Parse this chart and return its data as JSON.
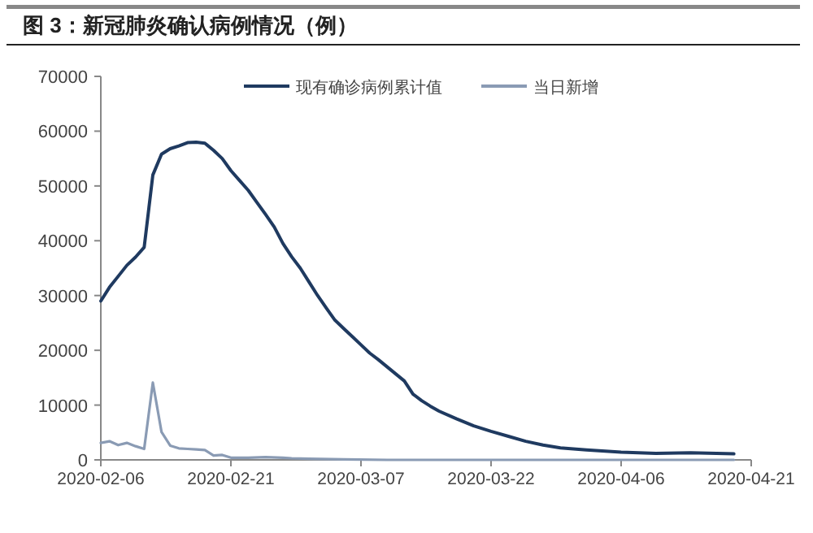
{
  "chart_data": {
    "type": "line",
    "title": "图 3：新冠肺炎确认病例情况（例）",
    "xlim": [
      "2020-02-06",
      "2020-04-21"
    ],
    "xticks": [
      "2020-02-06",
      "2020-02-21",
      "2020-03-07",
      "2020-03-22",
      "2020-04-06",
      "2020-04-21"
    ],
    "ylim": [
      0,
      70000
    ],
    "yticks": [
      0,
      10000,
      20000,
      30000,
      40000,
      50000,
      60000,
      70000
    ],
    "legend": "top",
    "grid": false,
    "marker": "none",
    "line_style": "solid",
    "series": [
      {
        "name": "现有确诊病例累计值",
        "color": "#1f3a60",
        "x": [
          "2020-02-06",
          "2020-02-07",
          "2020-02-08",
          "2020-02-09",
          "2020-02-10",
          "2020-02-11",
          "2020-02-12",
          "2020-02-13",
          "2020-02-14",
          "2020-02-15",
          "2020-02-16",
          "2020-02-17",
          "2020-02-18",
          "2020-02-19",
          "2020-02-20",
          "2020-02-21",
          "2020-02-22",
          "2020-02-23",
          "2020-02-24",
          "2020-02-25",
          "2020-02-26",
          "2020-02-27",
          "2020-02-28",
          "2020-02-29",
          "2020-03-01",
          "2020-03-02",
          "2020-03-03",
          "2020-03-04",
          "2020-03-05",
          "2020-03-06",
          "2020-03-07",
          "2020-03-08",
          "2020-03-09",
          "2020-03-10",
          "2020-03-11",
          "2020-03-12",
          "2020-03-13",
          "2020-03-14",
          "2020-03-15",
          "2020-03-16",
          "2020-03-18",
          "2020-03-20",
          "2020-03-22",
          "2020-03-24",
          "2020-03-26",
          "2020-03-28",
          "2020-03-30",
          "2020-04-02",
          "2020-04-06",
          "2020-04-10",
          "2020-04-14",
          "2020-04-19"
        ],
        "values": [
          29000,
          31500,
          33500,
          35500,
          37000,
          38800,
          52000,
          55800,
          56800,
          57300,
          57900,
          58000,
          57800,
          56500,
          55000,
          52800,
          51000,
          49200,
          47000,
          44800,
          42500,
          39500,
          37100,
          35000,
          32500,
          30000,
          27700,
          25500,
          24000,
          22500,
          21000,
          19500,
          18300,
          17000,
          15700,
          14400,
          12000,
          10800,
          9800,
          8900,
          7500,
          6200,
          5200,
          4300,
          3400,
          2700,
          2200,
          1800,
          1400,
          1200,
          1300,
          1100
        ]
      },
      {
        "name": "当日新增",
        "color": "#8a9bb4",
        "x": [
          "2020-02-06",
          "2020-02-07",
          "2020-02-08",
          "2020-02-09",
          "2020-02-10",
          "2020-02-11",
          "2020-02-12",
          "2020-02-13",
          "2020-02-14",
          "2020-02-15",
          "2020-02-16",
          "2020-02-17",
          "2020-02-18",
          "2020-02-19",
          "2020-02-20",
          "2020-02-21",
          "2020-02-23",
          "2020-02-25",
          "2020-02-27",
          "2020-02-28",
          "2020-03-01",
          "2020-03-05",
          "2020-03-10",
          "2020-03-20",
          "2020-04-01",
          "2020-04-19"
        ],
        "values": [
          3100,
          3400,
          2700,
          3100,
          2500,
          2000,
          14100,
          5100,
          2600,
          2100,
          2000,
          1900,
          1800,
          800,
          900,
          400,
          400,
          500,
          400,
          300,
          200,
          100,
          0,
          0,
          0,
          0
        ]
      }
    ]
  }
}
